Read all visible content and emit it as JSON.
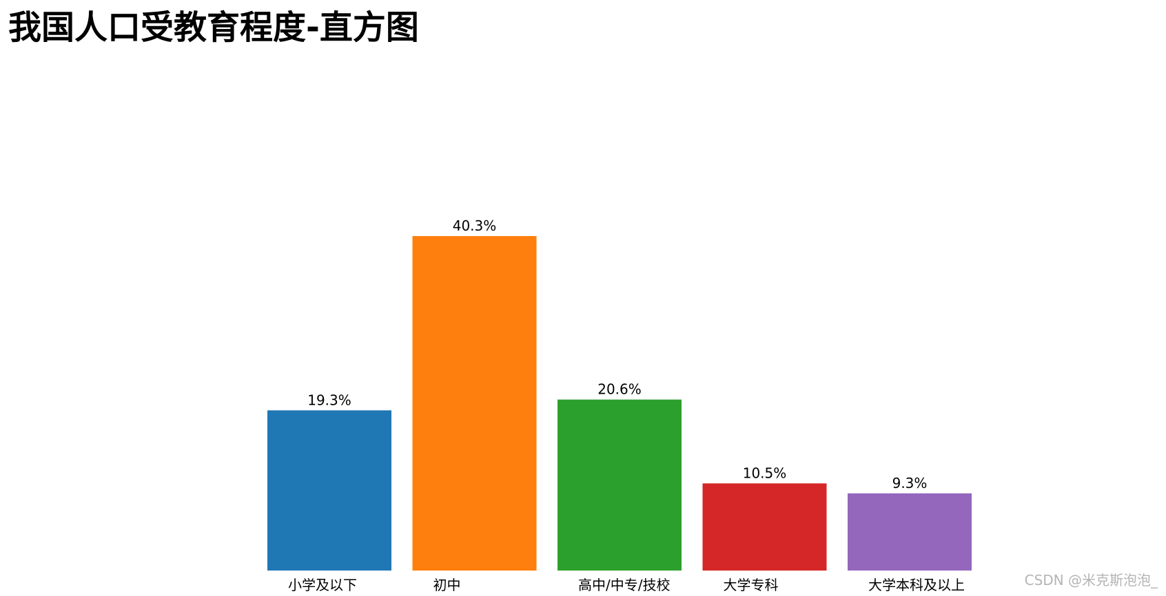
{
  "chart_data": {
    "type": "bar",
    "title": "我国人口受教育程度-直方图",
    "categories": [
      "小学及以下",
      "初中",
      "高中/中专/技校",
      "大学专科",
      "大学本科及以上"
    ],
    "values": [
      19.3,
      40.3,
      20.6,
      10.5,
      9.3
    ],
    "value_labels": [
      "19.3%",
      "40.3%",
      "20.6%",
      "10.5%",
      "9.3%"
    ],
    "colors": [
      "#1f77b4",
      "#ff7f0e",
      "#2ca02c",
      "#d62728",
      "#9467bd"
    ],
    "xlabel": "",
    "ylabel": "",
    "ylim": [
      0,
      40.3
    ],
    "grid": false,
    "legend": "none"
  },
  "watermark": "CSDN @米克斯泡泡_"
}
